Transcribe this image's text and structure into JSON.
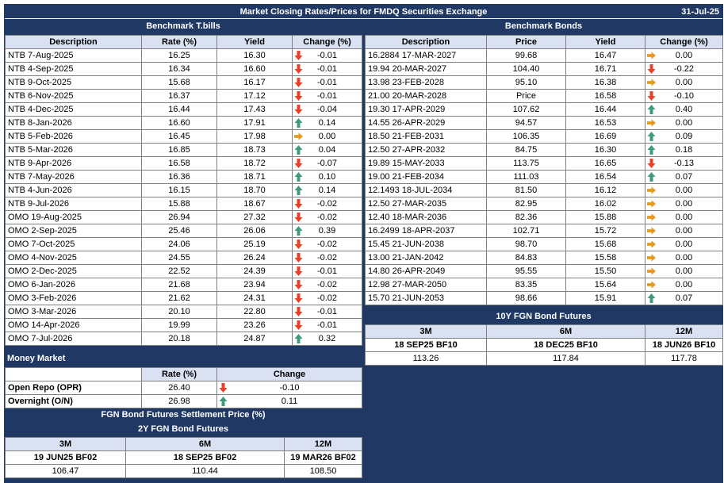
{
  "title": "Market Closing Rates/Prices for FMDQ Securities Exchange",
  "date": "31-Jul-25",
  "colors": {
    "navy": "#1F3864",
    "header_fill": "#D9E1F2",
    "down": "#E8402A",
    "up": "#3F9C78",
    "flat": "#E39A1E"
  },
  "tbills": {
    "heading": "Benchmark T.bills",
    "columns": [
      "Description",
      "Rate (%)",
      "Yield",
      "Change (%)"
    ],
    "rows": [
      {
        "desc": "NTB 7-Aug-2025",
        "rate": "16.25",
        "yield": "16.30",
        "dir": "down",
        "change": "-0.01"
      },
      {
        "desc": "NTB 4-Sep-2025",
        "rate": "16.34",
        "yield": "16.60",
        "dir": "down",
        "change": "-0.01"
      },
      {
        "desc": "NTB 9-Oct-2025",
        "rate": "15.68",
        "yield": "16.17",
        "dir": "down",
        "change": "-0.01"
      },
      {
        "desc": "NTB 6-Nov-2025",
        "rate": "16.37",
        "yield": "17.12",
        "dir": "down",
        "change": "-0.01"
      },
      {
        "desc": "NTB 4-Dec-2025",
        "rate": "16.44",
        "yield": "17.43",
        "dir": "down",
        "change": "-0.04"
      },
      {
        "desc": "NTB 8-Jan-2026",
        "rate": "16.60",
        "yield": "17.91",
        "dir": "up",
        "change": "0.14"
      },
      {
        "desc": "NTB 5-Feb-2026",
        "rate": "16.45",
        "yield": "17.98",
        "dir": "flat",
        "change": "0.00"
      },
      {
        "desc": "NTB 5-Mar-2026",
        "rate": "16.85",
        "yield": "18.73",
        "dir": "up",
        "change": "0.04"
      },
      {
        "desc": "NTB 9-Apr-2026",
        "rate": "16.58",
        "yield": "18.72",
        "dir": "down",
        "change": "-0.07"
      },
      {
        "desc": "NTB 7-May-2026",
        "rate": "16.36",
        "yield": "18.71",
        "dir": "up",
        "change": "0.10"
      },
      {
        "desc": "NTB 4-Jun-2026",
        "rate": "16.15",
        "yield": "18.70",
        "dir": "up",
        "change": "0.14"
      },
      {
        "desc": "NTB 9-Jul-2026",
        "rate": "15.88",
        "yield": "18.67",
        "dir": "down",
        "change": "-0.02"
      },
      {
        "desc": "OMO 19-Aug-2025",
        "rate": "26.94",
        "yield": "27.32",
        "dir": "down",
        "change": "-0.02"
      },
      {
        "desc": "OMO 2-Sep-2025",
        "rate": "25.46",
        "yield": "26.06",
        "dir": "up",
        "change": "0.39"
      },
      {
        "desc": "OMO 7-Oct-2025",
        "rate": "24.06",
        "yield": "25.19",
        "dir": "down",
        "change": "-0.02"
      },
      {
        "desc": "OMO 4-Nov-2025",
        "rate": "24.55",
        "yield": "26.24",
        "dir": "down",
        "change": "-0.02"
      },
      {
        "desc": "OMO 2-Dec-2025",
        "rate": "22.52",
        "yield": "24.39",
        "dir": "down",
        "change": "-0.01"
      },
      {
        "desc": "OMO 6-Jan-2026",
        "rate": "21.68",
        "yield": "23.94",
        "dir": "down",
        "change": "-0.02"
      },
      {
        "desc": "OMO 3-Feb-2026",
        "rate": "21.62",
        "yield": "24.31",
        "dir": "down",
        "change": "-0.02"
      },
      {
        "desc": "OMO 3-Mar-2026",
        "rate": "20.10",
        "yield": "22.80",
        "dir": "down",
        "change": "-0.01"
      },
      {
        "desc": "OMO 14-Apr-2026",
        "rate": "19.99",
        "yield": "23.26",
        "dir": "down",
        "change": "-0.01"
      },
      {
        "desc": "OMO 7-Jul-2026",
        "rate": "20.18",
        "yield": "24.87",
        "dir": "up",
        "change": "0.32"
      }
    ]
  },
  "bonds": {
    "heading": "Benchmark Bonds",
    "columns": [
      "Description",
      "Price",
      "Yield",
      "Change (%)"
    ],
    "rows": [
      {
        "desc": "16.2884 17-MAR-2027",
        "price": "99.68",
        "yield": "16.47",
        "dir": "flat",
        "change": "0.00"
      },
      {
        "desc": "19.94 20-MAR-2027",
        "price": "104.40",
        "yield": "16.71",
        "dir": "down",
        "change": "-0.22"
      },
      {
        "desc": "13.98 23-FEB-2028",
        "price": "95.10",
        "yield": "16.38",
        "dir": "flat",
        "change": "0.00"
      },
      {
        "desc": "21.00 20-MAR-2028",
        "price": "Price",
        "yield": "16.58",
        "dir": "down",
        "change": "-0.10"
      },
      {
        "desc": "19.30 17-APR-2029",
        "price": "107.62",
        "yield": "16.44",
        "dir": "up",
        "change": "0.40"
      },
      {
        "desc": "14.55 26-APR-2029",
        "price": "94.57",
        "yield": "16.53",
        "dir": "flat",
        "change": "0.00"
      },
      {
        "desc": "18.50 21-FEB-2031",
        "price": "106.35",
        "yield": "16.69",
        "dir": "up",
        "change": "0.09"
      },
      {
        "desc": "12.50 27-APR-2032",
        "price": "84.75",
        "yield": "16.30",
        "dir": "up",
        "change": "0.18"
      },
      {
        "desc": "19.89 15-MAY-2033",
        "price": "113.75",
        "yield": "16.65",
        "dir": "down",
        "change": "-0.13"
      },
      {
        "desc": "19.00 21-FEB-2034",
        "price": "111.03",
        "yield": "16.54",
        "dir": "up",
        "change": "0.07"
      },
      {
        "desc": "12.1493 18-JUL-2034",
        "price": "81.50",
        "yield": "16.12",
        "dir": "flat",
        "change": "0.00"
      },
      {
        "desc": "12.50 27-MAR-2035",
        "price": "82.95",
        "yield": "16.02",
        "dir": "flat",
        "change": "0.00"
      },
      {
        "desc": "12.40 18-MAR-2036",
        "price": "82.36",
        "yield": "15.88",
        "dir": "flat",
        "change": "0.00"
      },
      {
        "desc": "16.2499 18-APR-2037",
        "price": "102.71",
        "yield": "15.72",
        "dir": "flat",
        "change": "0.00"
      },
      {
        "desc": "15.45 21-JUN-2038",
        "price": "98.70",
        "yield": "15.68",
        "dir": "flat",
        "change": "0.00"
      },
      {
        "desc": "13.00 21-JAN-2042",
        "price": "84.83",
        "yield": "15.58",
        "dir": "flat",
        "change": "0.00"
      },
      {
        "desc": "14.80 26-APR-2049",
        "price": "95.55",
        "yield": "15.50",
        "dir": "flat",
        "change": "0.00"
      },
      {
        "desc": "12.98 27-MAR-2050",
        "price": "83.35",
        "yield": "15.64",
        "dir": "flat",
        "change": "0.00"
      },
      {
        "desc": "15.70 21-JUN-2053",
        "price": "98.66",
        "yield": "15.91",
        "dir": "up",
        "change": "0.07"
      }
    ]
  },
  "futures10y": {
    "heading": "10Y FGN Bond Futures",
    "tenors": [
      "3M",
      "6M",
      "12M"
    ],
    "contracts": [
      "18 SEP25 BF10",
      "18 DEC25 BF10",
      "18 JUN26 BF10"
    ],
    "prices": [
      "113.26",
      "117.84",
      "117.78"
    ]
  },
  "money_market": {
    "heading": "Money Market",
    "columns": [
      "Rate (%)",
      "Change"
    ],
    "rows": [
      {
        "label": "Open Repo (OPR)",
        "rate": "26.40",
        "dir": "down",
        "change": "-0.10"
      },
      {
        "label": "Overnight (O/N)",
        "rate": "26.98",
        "dir": "up",
        "change": "0.11"
      }
    ]
  },
  "settlement": {
    "heading": "FGN Bond Futures Settlement Price (%)",
    "sub_heading": "2Y FGN Bond Futures",
    "tenors": [
      "3M",
      "6M",
      "12M"
    ],
    "contracts": [
      "19 JUN25 BF02",
      "18 SEP25 BF02",
      "19 MAR26 BF02"
    ],
    "prices": [
      "106.47",
      "110.44",
      "108.50"
    ]
  }
}
